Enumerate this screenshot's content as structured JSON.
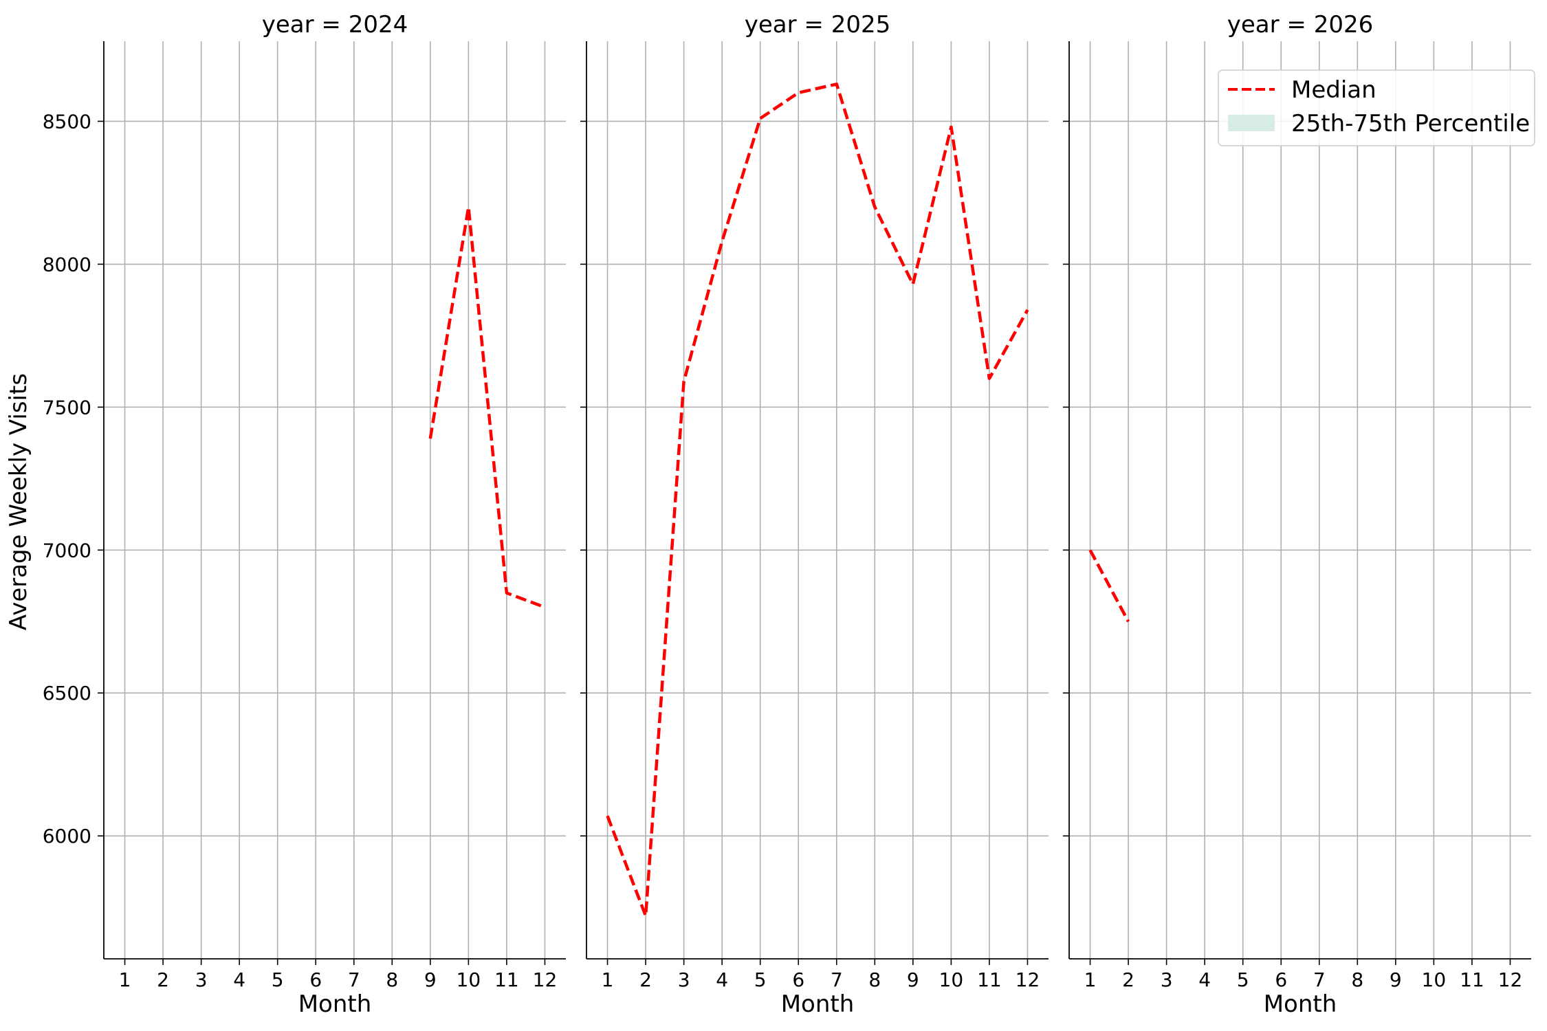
{
  "chart_data": {
    "type": "line",
    "ylabel": "Average Weekly Visits",
    "xlabel": "Month",
    "x_ticks": [
      1,
      2,
      3,
      4,
      5,
      6,
      7,
      8,
      9,
      10,
      11,
      12
    ],
    "y_ticks": [
      6000,
      6500,
      7000,
      7500,
      8000,
      8500
    ],
    "y_tick_labels": [
      "6000",
      "6500",
      "7000",
      "7500",
      "8000",
      "8500"
    ],
    "ylim": [
      5570,
      8780
    ],
    "xlim": [
      0.45,
      12.55
    ],
    "grid": true,
    "line_color": "#ff0000",
    "band_color": "#d7ece6",
    "legend": {
      "placement": "top-right of last panel",
      "entries": [
        {
          "label": "Median",
          "kind": "dashed-line",
          "color": "#ff0000"
        },
        {
          "label": "25th-75th Percentile",
          "kind": "band",
          "color": "#d7ece6"
        }
      ]
    },
    "panels": [
      {
        "title": "year = 2024",
        "series": [
          {
            "name": "Median",
            "x": [
              9,
              10,
              11,
              12
            ],
            "y": [
              7390,
              8200,
              6850,
              6800
            ]
          }
        ]
      },
      {
        "title": "year = 2025",
        "series": [
          {
            "name": "Median",
            "x": [
              1,
              2,
              3,
              4,
              5,
              6,
              7,
              8,
              9,
              10,
              11,
              12
            ],
            "y": [
              6070,
              5720,
              7590,
              8080,
              8510,
              8600,
              8630,
              8200,
              7930,
              8480,
              7600,
              7840
            ]
          }
        ]
      },
      {
        "title": "year = 2026",
        "series": [
          {
            "name": "Median",
            "x": [
              1,
              2
            ],
            "y": [
              7000,
              6750
            ]
          }
        ]
      }
    ]
  }
}
